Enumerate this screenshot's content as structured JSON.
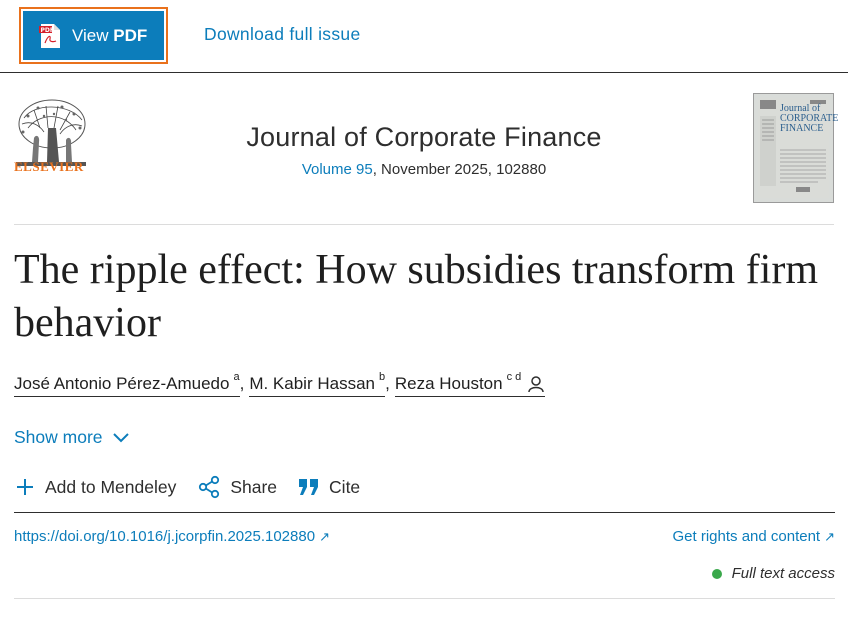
{
  "topbar": {
    "view_pdf_prefix": "View ",
    "view_pdf_bold": "PDF",
    "download_label": "Download full issue"
  },
  "journal": {
    "publisher": "ELSEVIER",
    "title": "Journal of Corporate Finance",
    "volume_link": "Volume 95",
    "issue_rest": ", November 2025, 102880",
    "cover_title_line1": "Journal of",
    "cover_title_line2": "CORPORATE",
    "cover_title_line3": "FINANCE"
  },
  "article": {
    "title": "The ripple effect: How subsidies transform firm behavior",
    "authors": [
      {
        "name": "José Antonio Pérez-Amuedo",
        "sup": "a"
      },
      {
        "name": "M. Kabir Hassan",
        "sup": "b"
      },
      {
        "name": "Reza Houston",
        "sup": "c d"
      }
    ],
    "show_more": "Show more",
    "actions": {
      "mendeley": "Add to Mendeley",
      "share": "Share",
      "cite": "Cite"
    },
    "doi": "https://doi.org/10.1016/j.jcorpfin.2025.102880",
    "rights": "Get rights and content",
    "access": "Full text access"
  },
  "colors": {
    "brand_blue": "#0c7dbb",
    "elsevier_orange": "#e9711c",
    "access_green": "#3aa84b"
  },
  "icons": [
    "pdf-file-icon",
    "person-icon",
    "chevron-down-icon",
    "plus-icon",
    "share-icon",
    "quote-icon",
    "external-arrow-icon"
  ]
}
